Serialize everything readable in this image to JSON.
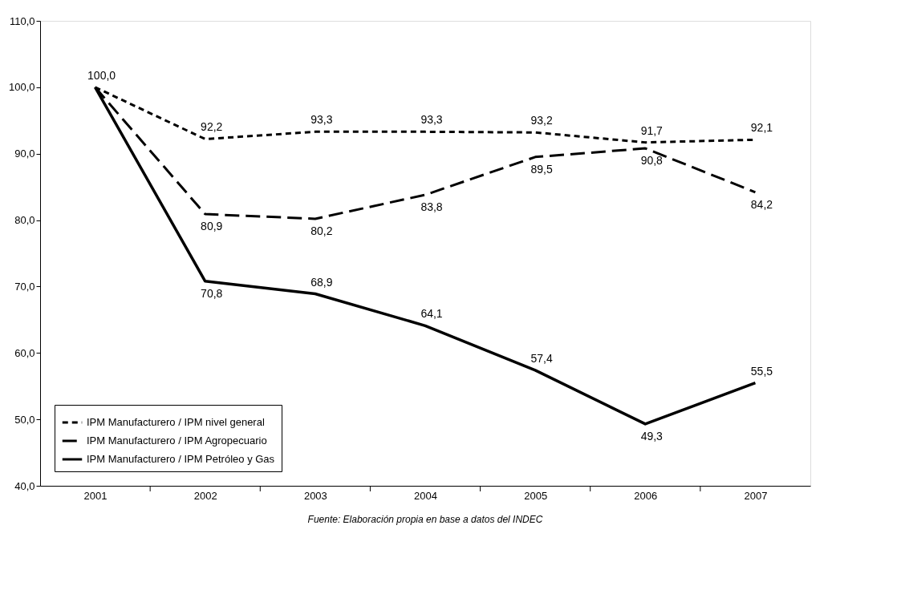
{
  "chart_data": {
    "type": "line",
    "categories": [
      "2001",
      "2002",
      "2003",
      "2004",
      "2005",
      "2006",
      "2007"
    ],
    "series": [
      {
        "name": "IPM Manufacturero / IPM nivel general",
        "color": "#000000",
        "line_style": "dotted",
        "values": [
          100.0,
          92.2,
          93.3,
          93.3,
          93.2,
          91.7,
          92.1
        ],
        "value_labels": [
          "100,0",
          "92,2",
          "93,3",
          "93,3",
          "93,2",
          "91,7",
          "92,1"
        ]
      },
      {
        "name": "IPM Manufacturero / IPM Agropecuario",
        "color": "#000000",
        "line_style": "dashed",
        "values": [
          100.0,
          80.9,
          80.2,
          83.8,
          89.5,
          90.8,
          84.2
        ],
        "value_labels": [
          null,
          "80,9",
          "80,2",
          "83,8",
          "89,5",
          "90,8",
          "84,2"
        ]
      },
      {
        "name": "IPM Manufacturero / IPM Petróleo y Gas",
        "color": "#000000",
        "line_style": "solid",
        "values": [
          100.0,
          70.8,
          68.9,
          64.1,
          57.4,
          49.3,
          55.5
        ],
        "value_labels": [
          null,
          "70,8",
          "68,9",
          "64,1",
          "57,4",
          "49,3",
          "55,5"
        ]
      }
    ],
    "ylim": [
      40,
      110
    ],
    "yticks": [
      {
        "value": 40,
        "label": "40,0"
      },
      {
        "value": 50,
        "label": "50,0"
      },
      {
        "value": 60,
        "label": "60,0"
      },
      {
        "value": 70,
        "label": "70,0"
      },
      {
        "value": 80,
        "label": "80,0"
      },
      {
        "value": 90,
        "label": "90,0"
      },
      {
        "value": 100,
        "label": "100,0"
      },
      {
        "value": 110,
        "label": "110,0"
      }
    ],
    "grid": false,
    "legend": "bottom left",
    "marker": "none",
    "annotations": [
      "Fuente: Elaboración propia en base a datos del INDEC"
    ]
  }
}
